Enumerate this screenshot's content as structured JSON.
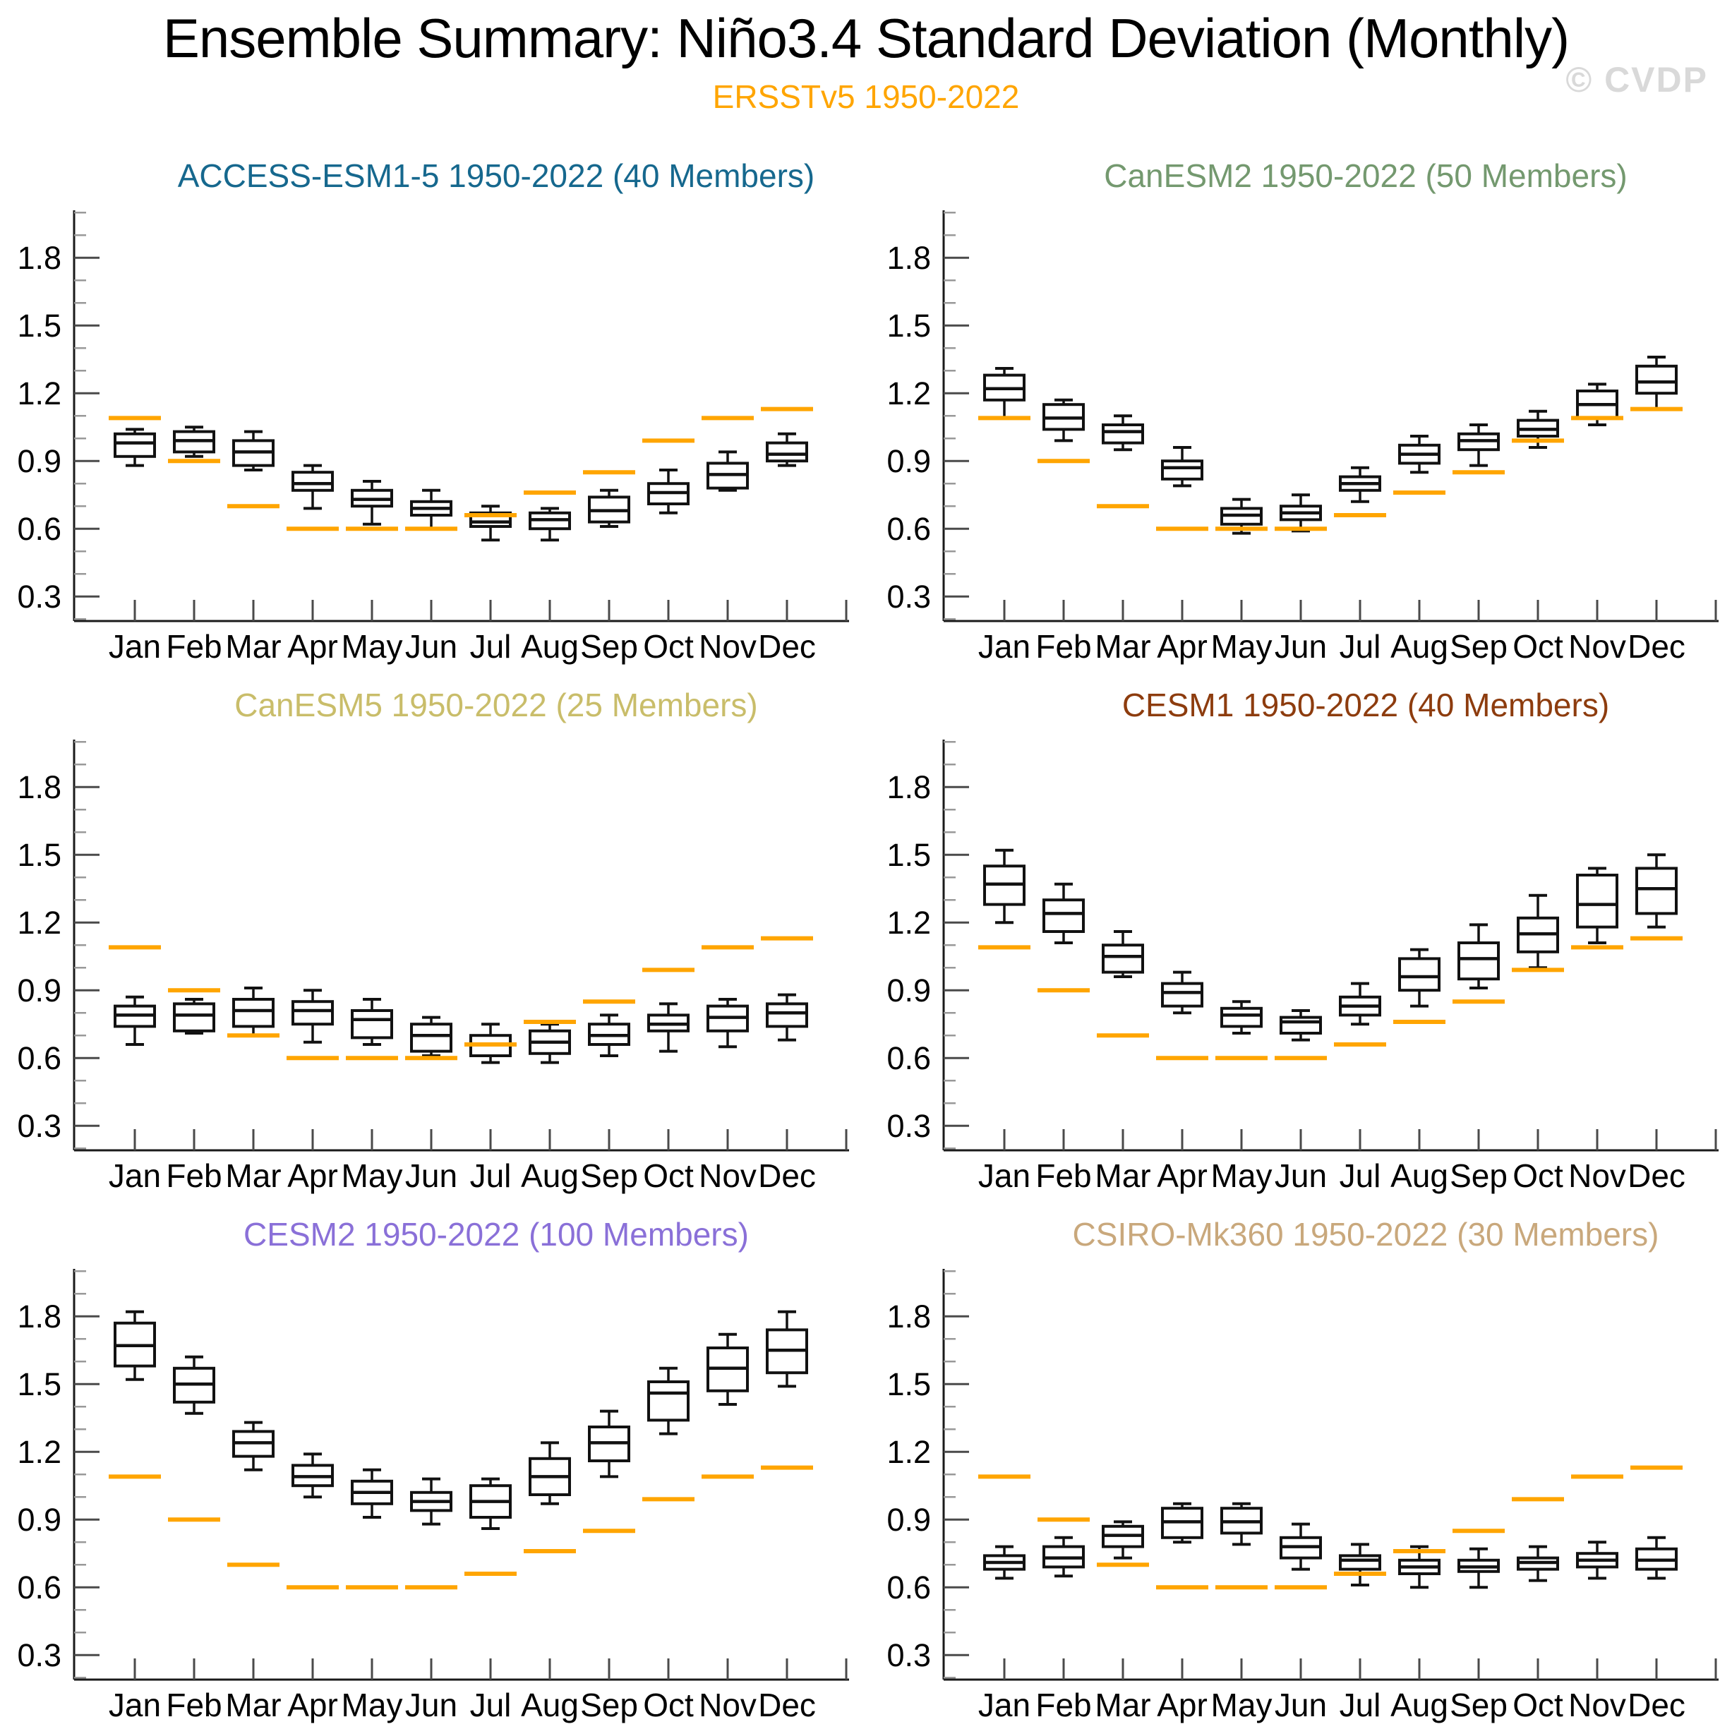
{
  "header": {
    "title": "Ensemble Summary: Niño3.4 Standard Deviation (Monthly)",
    "subtitle": "ERSSTv5 1950-2022",
    "watermark": "© CVDP"
  },
  "colors": {
    "subtitle_orange": "#FFA500",
    "observation_orange": "#FFA500",
    "box_stroke": "#111111",
    "axis_spine": "#1a1a1a",
    "major_tick": "#4a4a4a",
    "minor_tick": "#999999",
    "watermark_gray": "#d9d9d9"
  },
  "chart_data": {
    "type": "boxplot",
    "grid": "2 columns x 3 rows",
    "months": [
      "Jan",
      "Feb",
      "Mar",
      "Apr",
      "May",
      "Jun",
      "Jul",
      "Aug",
      "Sep",
      "Oct",
      "Nov",
      "Dec"
    ],
    "y_axis": {
      "major_ticks": [
        0.3,
        0.6,
        0.9,
        1.2,
        1.5,
        1.8
      ],
      "minor_tick_step": 0.1,
      "minor_tick_max": 2.0,
      "range": [
        0.19,
        2.01
      ],
      "tick_label_format": "one-decimal"
    },
    "observation": {
      "name": "ERSSTv5 1950-2022",
      "color": "#FFA500",
      "values": [
        1.09,
        0.9,
        0.7,
        0.6,
        0.6,
        0.6,
        0.66,
        0.76,
        0.85,
        0.99,
        1.09,
        1.13
      ]
    },
    "box_stats_order": [
      "whisker_low",
      "q1",
      "median",
      "q3",
      "whisker_high"
    ],
    "panels": [
      {
        "model": "ACCESS-ESM1-5",
        "title": "ACCESS-ESM1-5 1950-2022 (40 Members)",
        "color": "#16688e",
        "boxes": [
          [
            0.88,
            0.92,
            0.98,
            1.02,
            1.04
          ],
          [
            0.92,
            0.94,
            0.99,
            1.03,
            1.05
          ],
          [
            0.86,
            0.88,
            0.94,
            0.99,
            1.03
          ],
          [
            0.69,
            0.77,
            0.8,
            0.85,
            0.88
          ],
          [
            0.62,
            0.7,
            0.73,
            0.77,
            0.81
          ],
          [
            0.6,
            0.66,
            0.69,
            0.72,
            0.77
          ],
          [
            0.55,
            0.61,
            0.63,
            0.67,
            0.7
          ],
          [
            0.55,
            0.6,
            0.64,
            0.67,
            0.69
          ],
          [
            0.61,
            0.63,
            0.68,
            0.74,
            0.77
          ],
          [
            0.67,
            0.71,
            0.76,
            0.8,
            0.86
          ],
          [
            0.77,
            0.78,
            0.84,
            0.89,
            0.94
          ],
          [
            0.88,
            0.9,
            0.93,
            0.98,
            1.02
          ]
        ]
      },
      {
        "model": "CanESM2",
        "title": "CanESM2 1950-2022 (50 Members)",
        "color": "#74996f",
        "boxes": [
          [
            1.09,
            1.17,
            1.22,
            1.28,
            1.31
          ],
          [
            0.99,
            1.04,
            1.09,
            1.15,
            1.17
          ],
          [
            0.95,
            0.98,
            1.03,
            1.06,
            1.1
          ],
          [
            0.79,
            0.82,
            0.87,
            0.9,
            0.96
          ],
          [
            0.58,
            0.62,
            0.66,
            0.69,
            0.73
          ],
          [
            0.59,
            0.64,
            0.67,
            0.7,
            0.75
          ],
          [
            0.72,
            0.77,
            0.8,
            0.83,
            0.87
          ],
          [
            0.85,
            0.89,
            0.93,
            0.97,
            1.01
          ],
          [
            0.88,
            0.95,
            0.99,
            1.02,
            1.06
          ],
          [
            0.96,
            1.01,
            1.04,
            1.08,
            1.12
          ],
          [
            1.06,
            1.09,
            1.15,
            1.21,
            1.24
          ],
          [
            1.13,
            1.2,
            1.25,
            1.32,
            1.36
          ]
        ]
      },
      {
        "model": "CanESM5",
        "title": "CanESM5 1950-2022 (25 Members)",
        "color": "#c9bd6a",
        "boxes": [
          [
            0.66,
            0.74,
            0.79,
            0.83,
            0.87
          ],
          [
            0.71,
            0.72,
            0.79,
            0.84,
            0.86
          ],
          [
            0.7,
            0.74,
            0.81,
            0.86,
            0.91
          ],
          [
            0.67,
            0.75,
            0.81,
            0.85,
            0.9
          ],
          [
            0.66,
            0.69,
            0.77,
            0.81,
            0.86
          ],
          [
            0.61,
            0.63,
            0.7,
            0.75,
            0.78
          ],
          [
            0.58,
            0.61,
            0.66,
            0.7,
            0.75
          ],
          [
            0.58,
            0.62,
            0.67,
            0.72,
            0.75
          ],
          [
            0.61,
            0.66,
            0.7,
            0.75,
            0.79
          ],
          [
            0.63,
            0.72,
            0.75,
            0.79,
            0.84
          ],
          [
            0.65,
            0.72,
            0.78,
            0.83,
            0.86
          ],
          [
            0.68,
            0.74,
            0.8,
            0.84,
            0.88
          ]
        ]
      },
      {
        "model": "CESM1",
        "title": "CESM1 1950-2022 (40 Members)",
        "color": "#8d3c0e",
        "boxes": [
          [
            1.2,
            1.28,
            1.37,
            1.45,
            1.52
          ],
          [
            1.11,
            1.16,
            1.24,
            1.3,
            1.37
          ],
          [
            0.96,
            0.98,
            1.05,
            1.1,
            1.16
          ],
          [
            0.8,
            0.83,
            0.89,
            0.93,
            0.98
          ],
          [
            0.71,
            0.74,
            0.79,
            0.82,
            0.85
          ],
          [
            0.68,
            0.71,
            0.76,
            0.78,
            0.81
          ],
          [
            0.75,
            0.79,
            0.83,
            0.87,
            0.93
          ],
          [
            0.83,
            0.9,
            0.96,
            1.04,
            1.08
          ],
          [
            0.91,
            0.95,
            1.04,
            1.11,
            1.19
          ],
          [
            1.0,
            1.07,
            1.15,
            1.22,
            1.32
          ],
          [
            1.11,
            1.18,
            1.28,
            1.41,
            1.44
          ],
          [
            1.18,
            1.24,
            1.35,
            1.44,
            1.5
          ]
        ]
      },
      {
        "model": "CESM2",
        "title": "CESM2 1950-2022 (100 Members)",
        "color": "#8a70d8",
        "boxes": [
          [
            1.52,
            1.58,
            1.67,
            1.77,
            1.82
          ],
          [
            1.37,
            1.42,
            1.5,
            1.57,
            1.62
          ],
          [
            1.12,
            1.18,
            1.24,
            1.29,
            1.33
          ],
          [
            1.0,
            1.05,
            1.09,
            1.14,
            1.19
          ],
          [
            0.91,
            0.97,
            1.02,
            1.07,
            1.12
          ],
          [
            0.88,
            0.94,
            0.98,
            1.02,
            1.08
          ],
          [
            0.86,
            0.91,
            0.98,
            1.05,
            1.08
          ],
          [
            0.97,
            1.01,
            1.09,
            1.17,
            1.24
          ],
          [
            1.09,
            1.16,
            1.24,
            1.31,
            1.38
          ],
          [
            1.28,
            1.34,
            1.46,
            1.51,
            1.57
          ],
          [
            1.41,
            1.47,
            1.57,
            1.66,
            1.72
          ],
          [
            1.49,
            1.55,
            1.65,
            1.74,
            1.82
          ]
        ]
      },
      {
        "model": "CSIRO-Mk360",
        "title": "CSIRO-Mk360 1950-2022 (30 Members)",
        "color": "#c9a87c",
        "boxes": [
          [
            0.64,
            0.68,
            0.71,
            0.74,
            0.78
          ],
          [
            0.65,
            0.69,
            0.73,
            0.78,
            0.82
          ],
          [
            0.73,
            0.78,
            0.83,
            0.87,
            0.89
          ],
          [
            0.8,
            0.82,
            0.89,
            0.95,
            0.97
          ],
          [
            0.79,
            0.84,
            0.89,
            0.95,
            0.97
          ],
          [
            0.68,
            0.73,
            0.78,
            0.82,
            0.88
          ],
          [
            0.61,
            0.68,
            0.72,
            0.74,
            0.79
          ],
          [
            0.6,
            0.66,
            0.69,
            0.72,
            0.78
          ],
          [
            0.6,
            0.67,
            0.69,
            0.72,
            0.77
          ],
          [
            0.63,
            0.68,
            0.71,
            0.73,
            0.78
          ],
          [
            0.64,
            0.69,
            0.72,
            0.75,
            0.8
          ],
          [
            0.64,
            0.68,
            0.72,
            0.77,
            0.82
          ]
        ]
      }
    ]
  }
}
